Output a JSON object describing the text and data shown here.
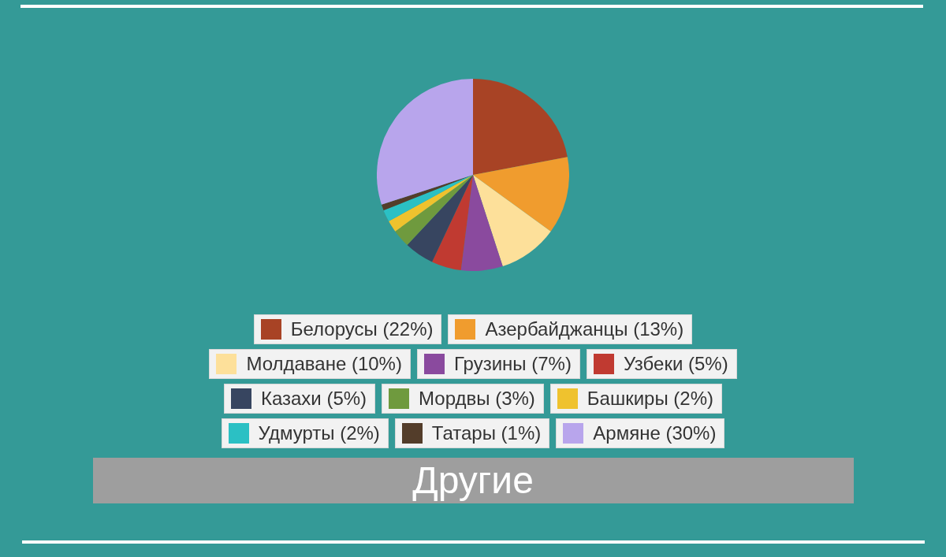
{
  "chart_data": {
    "type": "pie",
    "title": "Другие",
    "categories": [
      "Белорусы (22%)",
      "Азербайджанцы (13%)",
      "Молдаване (10%)",
      "Грузины (7%)",
      "Узбеки (5%)",
      "Казахи (5%)",
      "Мордвы (3%)",
      "Башкиры (2%)",
      "Удмурты (2%)",
      "Татары (1%)",
      "Армяне (30%)"
    ],
    "values": [
      22,
      13,
      10,
      7,
      5,
      5,
      3,
      2,
      2,
      1,
      30
    ],
    "colors": [
      "#a84325",
      "#f09c2e",
      "#fde09a",
      "#8a4a9e",
      "#c03a31",
      "#374560",
      "#6f9a3e",
      "#efc22e",
      "#2bc0c4",
      "#533d2a",
      "#b8a5ec"
    ],
    "legend": "bottom"
  }
}
